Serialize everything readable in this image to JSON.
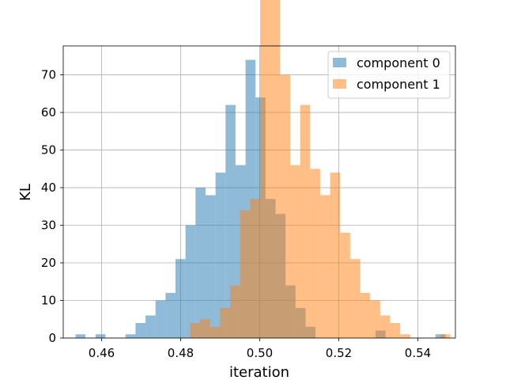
{
  "chart_data": {
    "type": "bar",
    "subtype": "histogram",
    "title": "",
    "xlabel": "iteration",
    "ylabel": "KL",
    "xlim": [
      0.4503,
      0.5495
    ],
    "ylim": [
      0,
      77.7
    ],
    "grid": true,
    "legend_position": "top-right",
    "x_ticks": [
      0.46,
      0.48,
      0.5,
      0.52,
      0.54
    ],
    "x_tick_labels": [
      "0.46",
      "0.48",
      "0.50",
      "0.52",
      "0.54"
    ],
    "y_ticks": [
      0,
      10,
      20,
      30,
      40,
      50,
      60,
      70
    ],
    "y_tick_labels": [
      "0",
      "10",
      "20",
      "30",
      "40",
      "50",
      "60",
      "70"
    ],
    "series": [
      {
        "name": "component 0",
        "color": "#1f77b4",
        "opacity": 0.5,
        "bin_start": 0.4534,
        "bin_width": 0.00253,
        "counts": [
          1,
          0,
          1,
          0,
          0,
          1,
          4,
          6,
          10,
          12,
          21,
          30,
          40,
          38,
          44,
          62,
          46,
          74,
          64,
          37,
          33,
          14,
          8,
          3,
          0,
          0,
          0,
          0,
          0,
          0,
          2,
          0,
          0,
          0,
          0,
          0,
          1
        ]
      },
      {
        "name": "component 1",
        "color": "#ff7f0e",
        "opacity": 0.5,
        "bin_start": 0.4824,
        "bin_width": 0.00253,
        "counts": [
          4,
          5,
          3,
          8,
          14,
          34,
          37,
          97,
          97,
          70,
          46,
          62,
          45,
          38,
          44,
          28,
          21,
          12,
          10,
          6,
          4,
          1,
          0,
          0,
          0,
          1,
          0,
          0,
          0,
          0,
          0,
          0,
          0,
          0,
          0,
          0,
          0
        ]
      }
    ]
  }
}
